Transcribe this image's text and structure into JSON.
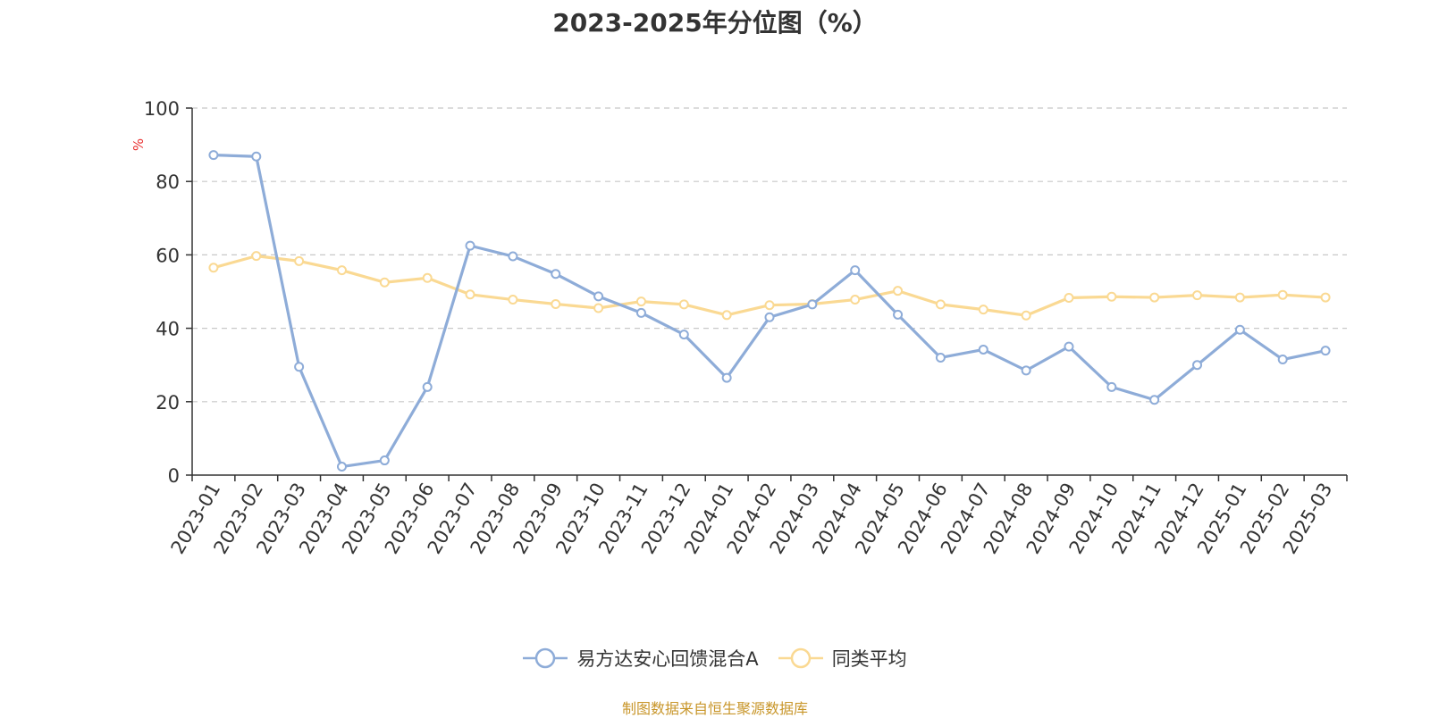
{
  "chart_data": {
    "type": "line",
    "title": "2023-2025年分位图（%）",
    "ylabel": "%",
    "xlabel": "",
    "ylim": [
      0,
      100
    ],
    "yticks": [
      0,
      20,
      40,
      60,
      80,
      100
    ],
    "grid": true,
    "legend_position": "bottom",
    "categories": [
      "2023-01",
      "2023-02",
      "2023-03",
      "2023-04",
      "2023-05",
      "2023-06",
      "2023-07",
      "2023-08",
      "2023-09",
      "2023-10",
      "2023-11",
      "2023-12",
      "2024-01",
      "2024-02",
      "2024-03",
      "2024-04",
      "2024-05",
      "2024-06",
      "2024-07",
      "2024-08",
      "2024-09",
      "2024-10",
      "2024-11",
      "2024-12",
      "2025-01",
      "2025-02",
      "2025-03"
    ],
    "series": [
      {
        "name": "易方达安心回馈混合A",
        "color": "#8eacd8",
        "values": [
          87.2,
          86.8,
          29.5,
          2.3,
          4.0,
          24.0,
          62.5,
          59.6,
          54.8,
          48.7,
          44.2,
          38.3,
          26.5,
          43.0,
          46.5,
          55.8,
          43.7,
          32.0,
          34.2,
          28.5,
          35.0,
          24.0,
          20.5,
          30.0,
          39.6,
          31.5,
          33.9
        ]
      },
      {
        "name": "同类平均",
        "color": "#fad993",
        "values": [
          56.5,
          59.7,
          58.3,
          55.8,
          52.5,
          53.7,
          49.2,
          47.8,
          46.6,
          45.5,
          47.3,
          46.5,
          43.6,
          46.3,
          46.6,
          47.8,
          50.2,
          46.5,
          45.1,
          43.5,
          48.3,
          48.6,
          48.4,
          49.0,
          48.4,
          49.1,
          48.4
        ]
      }
    ]
  },
  "source_note": "制图数据来自恒生聚源数据库",
  "colors": {
    "axis": "#333333",
    "grid": "#c8c8c8",
    "ylabel": "#e83030",
    "source": "#c8962a"
  }
}
